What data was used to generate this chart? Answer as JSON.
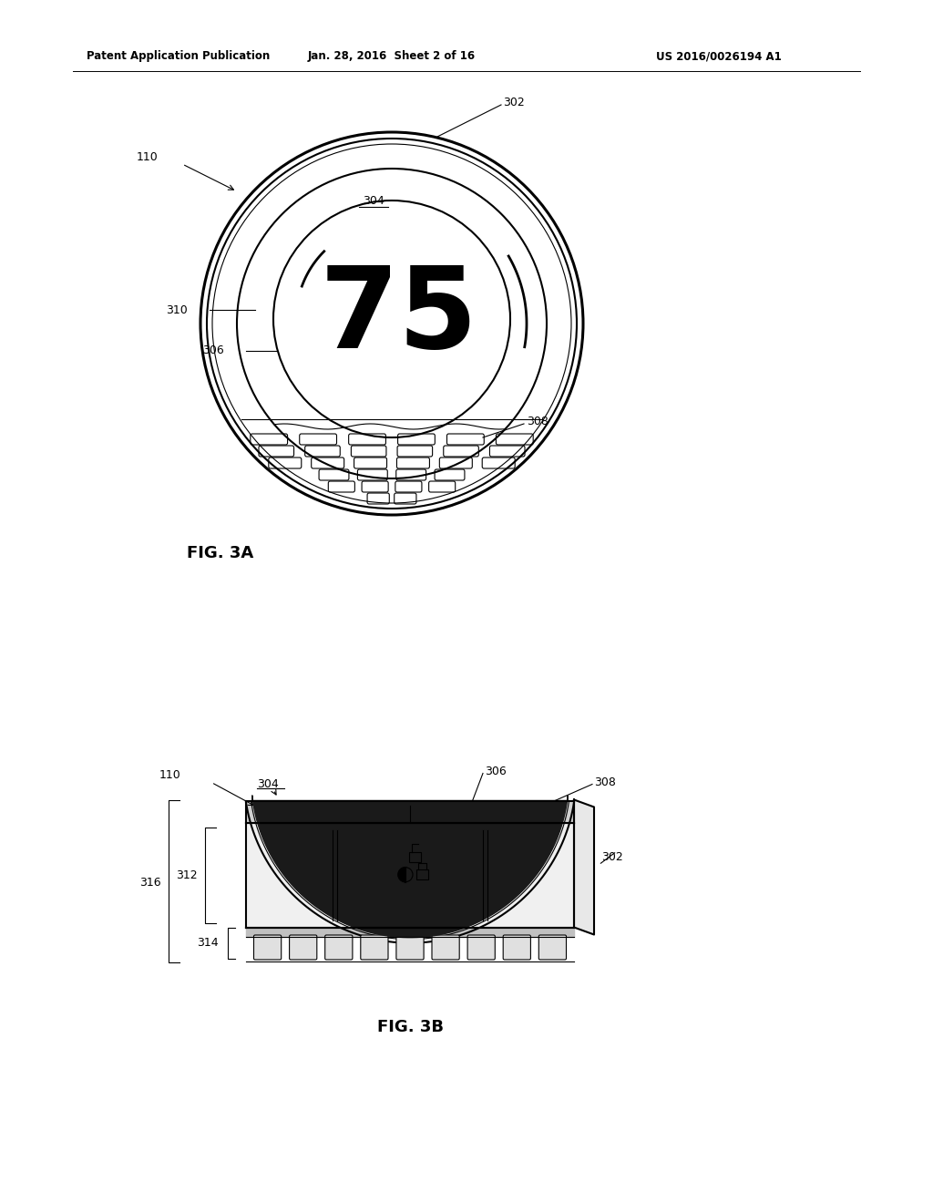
{
  "bg_color": "#ffffff",
  "line_color": "#000000",
  "header_left": "Patent Application Publication",
  "header_center": "Jan. 28, 2016  Sheet 2 of 16",
  "header_right": "US 2016/0026194 A1",
  "fig3a_label": "FIG. 3A",
  "fig3b_label": "FIG. 3B",
  "label_302_3a": "302",
  "label_304_3a": "304",
  "label_306_3a": "306",
  "label_308_3a": "308",
  "label_310_3a": "310",
  "label_110_3a": "110",
  "label_302_3b": "302",
  "label_304_3b": "304",
  "label_306_3b": "306",
  "label_308_3b": "308",
  "label_110_3b": "110",
  "label_312": "312",
  "label_314": "314",
  "label_316": "316",
  "display_number": "75"
}
